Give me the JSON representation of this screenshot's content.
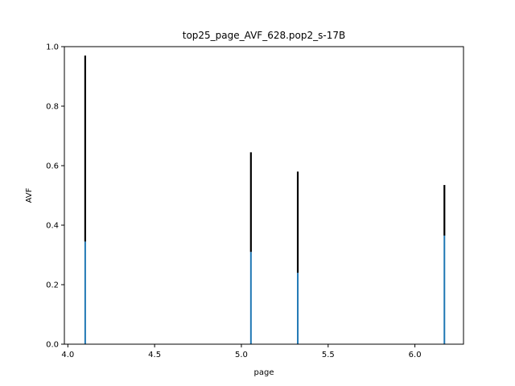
{
  "chart_data": {
    "type": "bar",
    "title": "top25_page_AVF_628.pop2_s-17B",
    "xlabel": "page",
    "ylabel": "AVF",
    "xlim": [
      3.98,
      6.28
    ],
    "ylim": [
      0.0,
      1.0
    ],
    "x_ticks": [
      4.0,
      4.5,
      5.0,
      5.5,
      6.0
    ],
    "x_tick_labels": [
      "4.0",
      "4.5",
      "5.0",
      "5.5",
      "6.0"
    ],
    "y_ticks": [
      0.0,
      0.2,
      0.4,
      0.6,
      0.8,
      1.0
    ],
    "y_tick_labels": [
      "0.0",
      "0.2",
      "0.4",
      "0.6",
      "0.8",
      "1.0"
    ],
    "grid": false,
    "bars": [
      {
        "x": 4.1,
        "value": 0.345,
        "err_high": 0.97
      },
      {
        "x": 5.055,
        "value": 0.31,
        "err_high": 0.645
      },
      {
        "x": 5.325,
        "value": 0.24,
        "err_high": 0.58
      },
      {
        "x": 6.17,
        "value": 0.365,
        "err_high": 0.535
      }
    ],
    "colors": {
      "bar": "#1f77b4",
      "error": "#000000"
    }
  }
}
